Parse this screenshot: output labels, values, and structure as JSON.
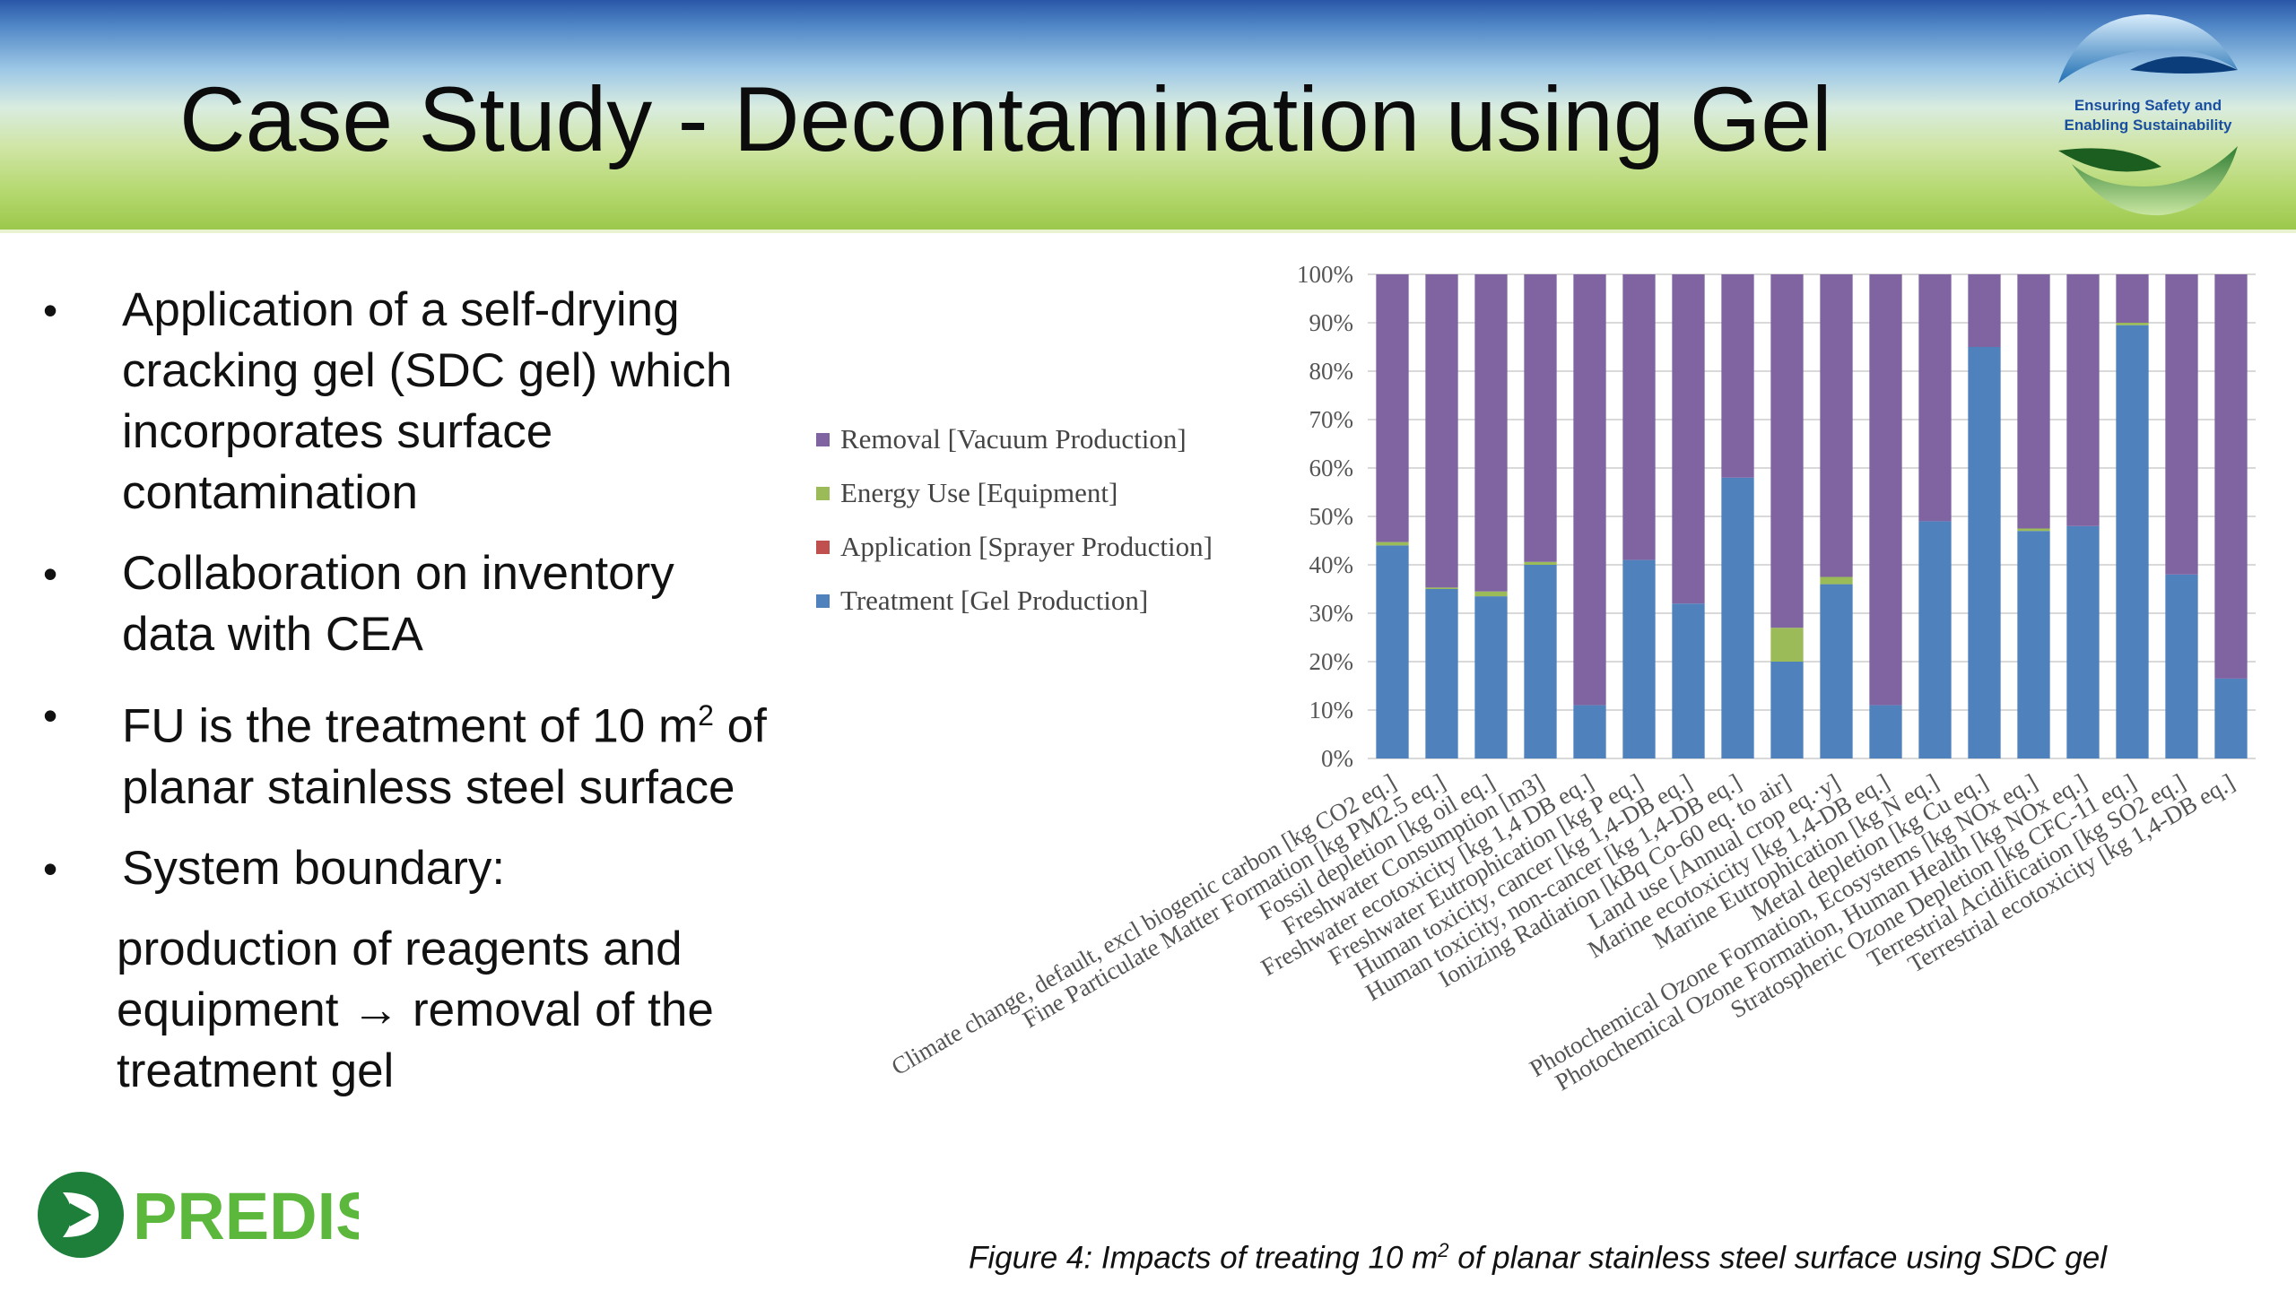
{
  "header": {
    "title": "Case Study - Decontamination using Gel",
    "logo_text_line1": "Ensuring Safety and",
    "logo_text_line2": "Enabling Sustainability"
  },
  "bullets": [
    {
      "text": "Application of a self-drying cracking gel (SDC gel) which incorporates surface contamination"
    },
    {
      "text": "Collaboration on inventory data with CEA"
    },
    {
      "text_before": "FU is the treatment of 10 m",
      "sup": "2",
      "text_after": " of planar stainless steel surface"
    },
    {
      "text": "System boundary:"
    }
  ],
  "system_boundary_detail": {
    "before": "production of reagents and equipment ",
    "arrow": "→",
    "after": " removal of the treatment gel"
  },
  "bullet_symbol": "•",
  "footer_logo_text": "PREDIS",
  "caption": {
    "before": "Figure 4: Impacts of treating 10 m",
    "sup": "2",
    "after": " of planar stainless steel surface using SDC gel"
  },
  "colors": {
    "removal": "#8064a2",
    "energy": "#9bbb59",
    "application": "#c0504d",
    "treatment": "#4f81bd",
    "predis_green": "#1e7f3b",
    "predis_light": "#6cc04a"
  },
  "chart_data": {
    "type": "bar",
    "stacked": true,
    "percent": true,
    "ylim": [
      0,
      100
    ],
    "yticks": [
      "0%",
      "10%",
      "20%",
      "30%",
      "40%",
      "50%",
      "60%",
      "70%",
      "80%",
      "90%",
      "100%"
    ],
    "legend_position": "left",
    "categories": [
      "Climate change, default, excl biogenic carbon [kg CO2 eq.]",
      "Fine Particulate Matter Formation [kg PM2.5 eq.]",
      "Fossil depletion [kg oil eq.]",
      "Freshwater Consumption [m3]",
      "Freshwater ecotoxicity [kg 1,4 DB eq.]",
      "Freshwater Eutrophication [kg P eq.]",
      "Human toxicity, cancer [kg 1,4-DB eq.]",
      "Human toxicity, non-cancer [kg 1,4-DB eq.]",
      "Ionizing Radiation [kBq Co-60 eq. to air]",
      "Land use [Annual crop eq.·y]",
      "Marine ecotoxicity [kg 1,4-DB eq.]",
      "Marine Eutrophication [kg N eq.]",
      "Metal depletion [kg Cu eq.]",
      "Photochemical Ozone Formation, Ecosystems [kg NOx eq.]",
      "Photochemical Ozone Formation, Human Health [kg NOx eq.]",
      "Stratospheric Ozone Depletion [kg CFC-11 eq.]",
      "Terrestrial Acidification [kg SO2 eq.]",
      "Terrestrial ecotoxicity [kg 1,4-DB eq.]"
    ],
    "series": [
      {
        "name": "Treatment [Gel Production]",
        "color_key": "treatment",
        "values": [
          44,
          35,
          33.5,
          40,
          11,
          41,
          32,
          58,
          20,
          36,
          11,
          49,
          85,
          47,
          48,
          89.5,
          38,
          16.5
        ]
      },
      {
        "name": "Application [Sprayer Production]",
        "color_key": "application",
        "values": [
          0,
          0,
          0,
          0,
          0,
          0,
          0,
          0,
          0,
          0,
          0,
          0,
          0,
          0,
          0,
          0,
          0,
          0
        ]
      },
      {
        "name": "Energy Use [Equipment]",
        "color_key": "energy",
        "values": [
          0.7,
          0.3,
          1,
          0.6,
          0,
          0,
          0,
          0,
          7,
          1.5,
          0,
          0,
          0,
          0.5,
          0,
          0.5,
          0,
          0
        ]
      },
      {
        "name": "Removal [Vacuum Production]",
        "color_key": "removal",
        "values": [
          55.3,
          64.7,
          65.5,
          59.4,
          89,
          59,
          68,
          42,
          73,
          62.5,
          89,
          51,
          15,
          52.5,
          52,
          10,
          62,
          83.5
        ]
      }
    ],
    "legend_order": [
      "Removal [Vacuum Production]",
      "Energy Use [Equipment]",
      "Application [Sprayer Production]",
      "Treatment [Gel Production]"
    ]
  }
}
